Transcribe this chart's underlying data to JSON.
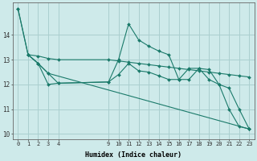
{
  "xlabel": "Humidex (Indice chaleur)",
  "ylabel": "",
  "background_color": "#ceeaea",
  "grid_color": "#aacfcf",
  "line_color": "#1a7a6a",
  "xlim": [
    -0.5,
    23.5
  ],
  "ylim": [
    9.8,
    15.3
  ],
  "yticks": [
    10,
    11,
    12,
    13,
    14
  ],
  "xtick_positions": [
    0,
    1,
    2,
    3,
    4,
    9,
    10,
    11,
    12,
    13,
    14,
    15,
    16,
    17,
    18,
    19,
    20,
    21,
    22,
    23
  ],
  "xtick_labels": [
    "0",
    "1",
    "2",
    "3",
    "4",
    "9",
    "10",
    "11",
    "12",
    "13",
    "14",
    "15",
    "16",
    "17",
    "18",
    "19",
    "20",
    "21",
    "22",
    "23"
  ],
  "series": [
    {
      "x": [
        0,
        1,
        2,
        3,
        4,
        9,
        10,
        11,
        12,
        13,
        14,
        15,
        16,
        17,
        18,
        19,
        20,
        21,
        22,
        23
      ],
      "y": [
        15.05,
        13.2,
        13.15,
        13.05,
        13.0,
        13.0,
        12.95,
        12.9,
        12.85,
        12.8,
        12.75,
        12.7,
        12.65,
        12.6,
        12.55,
        12.5,
        12.45,
        12.4,
        12.35,
        12.3
      ]
    },
    {
      "x": [
        0,
        1,
        2,
        3,
        4,
        9,
        10,
        11,
        12,
        13,
        14,
        15,
        16,
        17,
        18,
        19,
        20,
        21,
        22,
        23
      ],
      "y": [
        15.05,
        13.2,
        12.85,
        12.0,
        12.05,
        12.1,
        13.0,
        14.45,
        13.8,
        13.55,
        13.35,
        13.2,
        12.2,
        12.2,
        12.65,
        12.2,
        12.0,
        11.0,
        10.3,
        10.2
      ]
    },
    {
      "x": [
        1,
        2,
        3,
        4,
        9,
        10,
        11,
        12,
        13,
        14,
        15,
        16,
        17,
        18,
        19,
        20,
        21,
        22,
        23
      ],
      "y": [
        13.2,
        12.85,
        12.45,
        12.05,
        12.1,
        12.4,
        12.85,
        12.55,
        12.5,
        12.35,
        12.2,
        12.2,
        12.65,
        12.65,
        12.6,
        12.0,
        11.85,
        11.0,
        10.2
      ]
    },
    {
      "x": [
        1,
        2,
        3,
        23
      ],
      "y": [
        13.2,
        12.85,
        12.45,
        10.2
      ]
    }
  ]
}
